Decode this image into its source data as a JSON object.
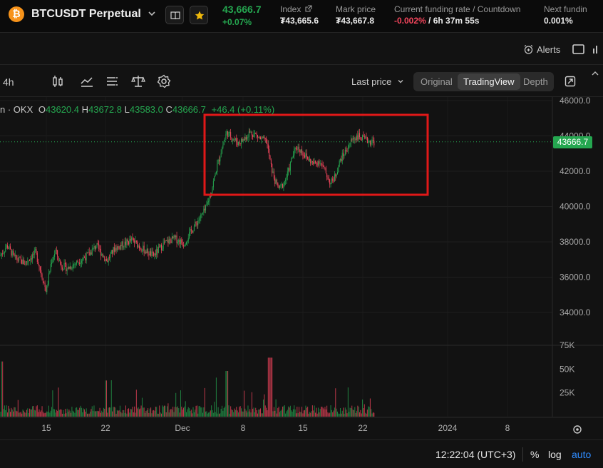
{
  "header": {
    "coin_glyph": "₿",
    "symbol": "BTCUSDT Perpetual",
    "last_price": "43,666.7",
    "change_pct": "+0.07%",
    "index_label": "Index",
    "index_value": "₮43,665.6",
    "mark_label": "Mark price",
    "mark_value": "₮43,667.8",
    "funding_label": "Current funding rate / Countdown",
    "funding_rate": "-0.002%",
    "funding_countdown": " / 6h 37m 55s",
    "next_funding_label": "Next fundin",
    "next_funding_value": "0.001%"
  },
  "bar2": {
    "alerts_label": "Alerts"
  },
  "toolbar": {
    "interval": "4h",
    "price_type": "Last price",
    "views": [
      "Original",
      "TradingView",
      "Depth"
    ],
    "active_view": "TradingView"
  },
  "legend": {
    "source": "n · OKX",
    "open_label": "O",
    "open": "43620.4",
    "high_label": "H",
    "high": "43672.8",
    "low_label": "L",
    "low": "43583.0",
    "close_label": "C",
    "close": "43666.7",
    "change": "+46.4 (+0.11%)"
  },
  "price_axis": [
    "46000.0",
    "44000.0",
    "42000.0",
    "40000.0",
    "38000.0",
    "36000.0",
    "34000.0"
  ],
  "current_price_tag": "43666.7",
  "volume_axis": [
    "75K",
    "50K",
    "25K"
  ],
  "time_axis": [
    "15",
    "22",
    "Dec",
    "8",
    "15",
    "22",
    "2024",
    "8"
  ],
  "footer": {
    "time": "12:22:04 (UTC+3)",
    "percent": "%",
    "log": "log",
    "auto": "auto"
  },
  "colors": {
    "up": "#25a750",
    "down": "#f6465d",
    "highlight_box": "#e01818",
    "accent": "#2f8cff"
  },
  "chart_data": {
    "type": "candlestick",
    "pair": "BTCUSDT",
    "interval": "4h",
    "ylim": [
      33000,
      46500
    ],
    "volume_ylim": [
      0,
      75000
    ],
    "price_path": [
      [
        0,
        37200
      ],
      [
        10,
        37800
      ],
      [
        20,
        37100
      ],
      [
        35,
        36800
      ],
      [
        50,
        37400
      ],
      [
        58,
        36200
      ],
      [
        65,
        35200
      ],
      [
        72,
        36900
      ],
      [
        78,
        37500
      ],
      [
        85,
        36700
      ],
      [
        95,
        36500
      ],
      [
        110,
        36900
      ],
      [
        125,
        37300
      ],
      [
        135,
        37800
      ],
      [
        150,
        36900
      ],
      [
        160,
        37600
      ],
      [
        175,
        37900
      ],
      [
        185,
        38100
      ],
      [
        200,
        37600
      ],
      [
        215,
        37200
      ],
      [
        230,
        37900
      ],
      [
        245,
        38200
      ],
      [
        258,
        37900
      ],
      [
        268,
        38600
      ],
      [
        278,
        39200
      ],
      [
        288,
        39800
      ],
      [
        296,
        40800
      ],
      [
        304,
        42200
      ],
      [
        312,
        43400
      ],
      [
        318,
        44200
      ],
      [
        326,
        43900
      ],
      [
        334,
        43600
      ],
      [
        342,
        43800
      ],
      [
        350,
        44200
      ],
      [
        358,
        44100
      ],
      [
        366,
        43800
      ],
      [
        374,
        43700
      ],
      [
        380,
        42300
      ],
      [
        386,
        41400
      ],
      [
        392,
        41000
      ],
      [
        398,
        41300
      ],
      [
        404,
        41900
      ],
      [
        410,
        42800
      ],
      [
        416,
        43400
      ],
      [
        424,
        43100
      ],
      [
        432,
        42700
      ],
      [
        440,
        42400
      ],
      [
        448,
        42600
      ],
      [
        456,
        42000
      ],
      [
        464,
        41300
      ],
      [
        470,
        41700
      ],
      [
        478,
        42700
      ],
      [
        486,
        43200
      ],
      [
        494,
        43800
      ],
      [
        502,
        44000
      ],
      [
        510,
        43800
      ],
      [
        518,
        43700
      ],
      [
        526,
        43666.7
      ]
    ],
    "highlight_box": {
      "price_from": 41300,
      "price_to": 45100,
      "x_label_from": "Dec 4",
      "x_label_to": "Jan 1"
    }
  }
}
